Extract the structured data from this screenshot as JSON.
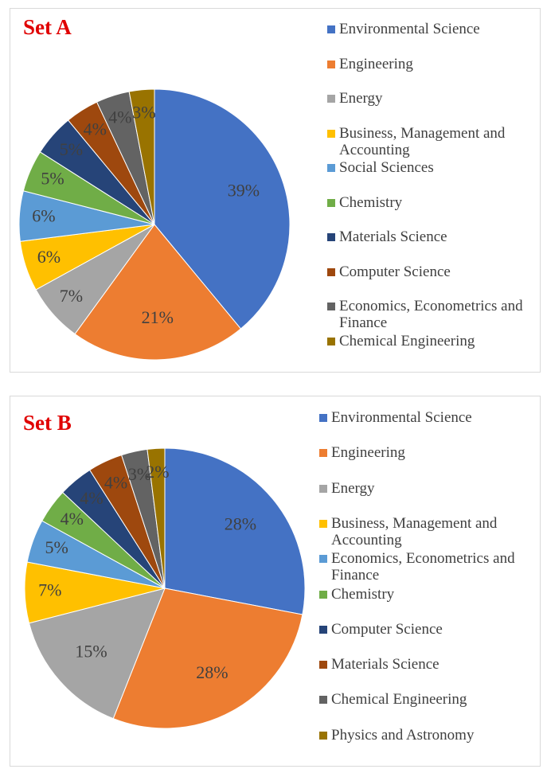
{
  "chart_data": [
    {
      "type": "pie",
      "title": "Set A",
      "categories": [
        "Environmental Science",
        "Engineering",
        "Energy",
        "Business, Management and Accounting",
        "Social Sciences",
        "Chemistry",
        "Materials Science",
        "Computer Science",
        "Economics, Econometrics and Finance",
        "Chemical Engineering"
      ],
      "values": [
        39,
        21,
        7,
        6,
        6,
        5,
        5,
        4,
        4,
        3
      ],
      "value_labels": [
        "39%",
        "21%",
        "7%",
        "6%",
        "6%",
        "5%",
        "5%",
        "4%",
        "4%",
        "3%"
      ],
      "colors": [
        "#4472c4",
        "#ed7d31",
        "#a5a5a5",
        "#ffc000",
        "#5b9bd5",
        "#70ad47",
        "#264478",
        "#9e480e",
        "#636363",
        "#997300"
      ],
      "legend": "right"
    },
    {
      "type": "pie",
      "title": "Set B",
      "categories": [
        "Environmental Science",
        "Engineering",
        "Energy",
        "Business, Management and Accounting",
        "Economics, Econometrics and Finance",
        "Chemistry",
        "Computer Science",
        "Materials Science",
        "Chemical Engineering",
        "Physics and Astronomy"
      ],
      "values": [
        28,
        28,
        15,
        7,
        5,
        4,
        4,
        4,
        3,
        2
      ],
      "value_labels": [
        "28%",
        "28%",
        "15%",
        "7%",
        "5%",
        "4%",
        "4%",
        "4%",
        "3%",
        "2%"
      ],
      "colors": [
        "#4472c4",
        "#ed7d31",
        "#a5a5a5",
        "#ffc000",
        "#5b9bd5",
        "#70ad47",
        "#264478",
        "#9e480e",
        "#636363",
        "#997300"
      ],
      "legend": "right"
    }
  ]
}
